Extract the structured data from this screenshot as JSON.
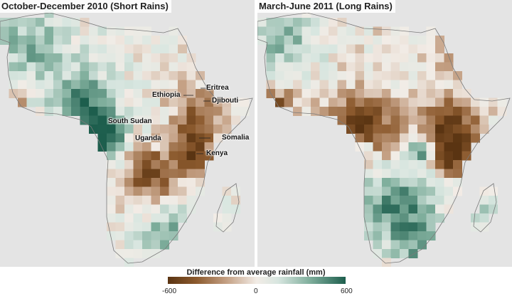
{
  "panels": [
    {
      "title": "October-December 2010 (Short Rains)"
    },
    {
      "title": "March-June 2011 (Long Rains)"
    }
  ],
  "labels": {
    "eritrea": "Eritrea",
    "ethiopia": "Ethiopia",
    "djibouti": "Djibouti",
    "south_sudan": "South Sudan",
    "uganda": "Uganda",
    "somalia": "Somalia",
    "kenya": "Kenya"
  },
  "legend": {
    "title": "Difference from average rainfall (mm)",
    "min": "-600",
    "mid": "0",
    "max": "600"
  },
  "colors": {
    "ocean": "#e4e4e4",
    "dry": "#5a3412",
    "neutral": "#f2ece6",
    "wet": "#1d5e4d"
  }
}
